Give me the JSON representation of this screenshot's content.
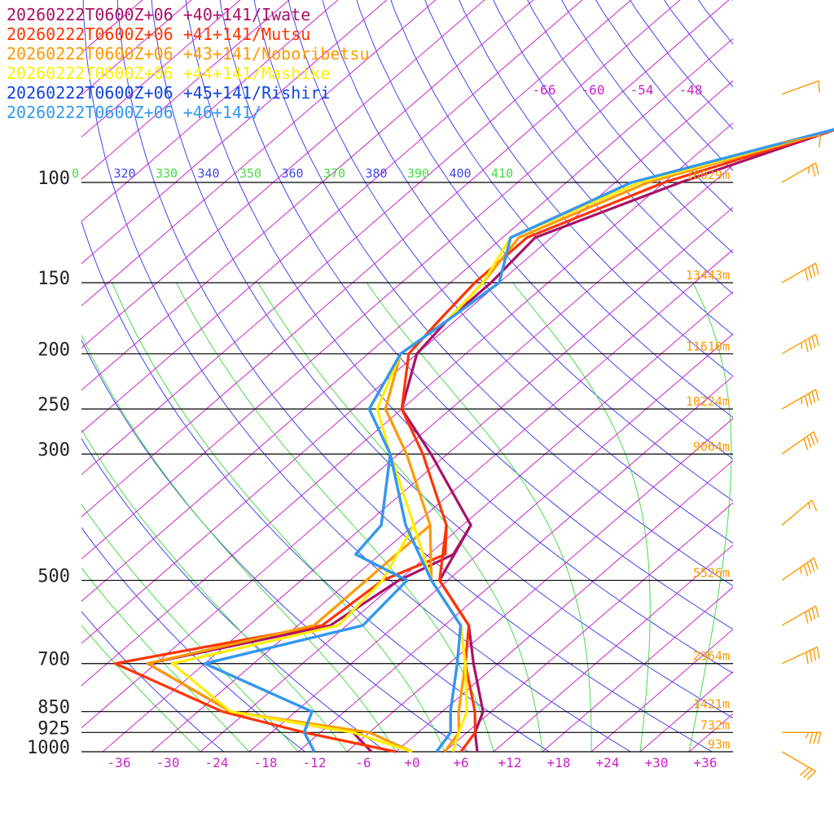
{
  "legend": [
    {
      "label": "20260222T0600Z+06 +40+141/Iwate",
      "color": "#aa1166"
    },
    {
      "label": "20260222T0600Z+06 +41+141/Mutsu",
      "color": "#ff3300"
    },
    {
      "label": "20260222T0600Z+06 +43+141/Noboribetsu",
      "color": "#ff9900"
    },
    {
      "label": "20260222T0600Z+06 +44+141/Mashike",
      "color": "#ffee00"
    },
    {
      "label": "20260222T0600Z+06 +45+141/Rishiri",
      "color": "#1144dd"
    },
    {
      "label": "20260222T0600Z+06 +46+141/",
      "color": "#3399ee"
    }
  ],
  "chart_data": {
    "type": "line",
    "title": "",
    "pressure_levels": [
      {
        "p": 100,
        "label": "100",
        "height": "16029m"
      },
      {
        "p": 150,
        "label": "150",
        "height": "13443m"
      },
      {
        "p": 200,
        "label": "200",
        "height": "11610m"
      },
      {
        "p": 250,
        "label": "250",
        "height": "10224m"
      },
      {
        "p": 300,
        "label": "300",
        "height": "9064m"
      },
      {
        "p": 500,
        "label": "500",
        "height": "5526m"
      },
      {
        "p": 700,
        "label": "700",
        "height": "2964m"
      },
      {
        "p": 850,
        "label": "850",
        "height": "1421m"
      },
      {
        "p": 925,
        "label": "925",
        "height": "732m"
      },
      {
        "p": 1000,
        "label": "1000",
        "height": "93m"
      }
    ],
    "x_ticks": [
      "-36",
      "-30",
      "-24",
      "-18",
      "-12",
      "-6",
      "+0",
      "+6",
      "+12",
      "+18",
      "+24",
      "+30",
      "+36"
    ],
    "x_tick_values": [
      -36,
      -30,
      -24,
      -18,
      -12,
      -6,
      0,
      6,
      12,
      18,
      24,
      30,
      36
    ],
    "top_isotherm_labels": [
      "-66",
      "-60",
      "-54",
      "-48"
    ],
    "theta_labels": [
      {
        "text": "0",
        "color": "#44dd44"
      },
      {
        "text": "320",
        "color": "#4444ee"
      },
      {
        "text": "330",
        "color": "#44dd44"
      },
      {
        "text": "340",
        "color": "#4444ee"
      },
      {
        "text": "350",
        "color": "#44dd44"
      },
      {
        "text": "360",
        "color": "#4444ee"
      },
      {
        "text": "370",
        "color": "#44dd44"
      },
      {
        "text": "380",
        "color": "#4444ee"
      },
      {
        "text": "390",
        "color": "#44dd44"
      },
      {
        "text": "400",
        "color": "#4444ee"
      },
      {
        "text": "410",
        "color": "#44dd44"
      }
    ],
    "xlim": [
      -40,
      40
    ],
    "ylim": [
      1000,
      100
    ],
    "series": [
      {
        "name": "Iwate",
        "color": "#aa1166",
        "temperature": [
          [
            80,
            -36
          ],
          [
            100,
            -48
          ],
          [
            125,
            -58
          ],
          [
            150,
            -57
          ],
          [
            175,
            -57
          ],
          [
            200,
            -56
          ],
          [
            250,
            -50
          ],
          [
            300,
            -40
          ],
          [
            400,
            -25
          ],
          [
            500,
            -21
          ],
          [
            600,
            -11
          ],
          [
            700,
            -5
          ],
          [
            850,
            3
          ],
          [
            925,
            5
          ],
          [
            1000,
            8
          ]
        ],
        "dewpoint": [
          [
            400,
            -25
          ],
          [
            450,
            -23
          ],
          [
            500,
            -26
          ],
          [
            600,
            -28
          ],
          [
            700,
            -45
          ],
          [
            850,
            -28
          ],
          [
            925,
            -10
          ],
          [
            1000,
            -5
          ]
        ]
      },
      {
        "name": "Mutsu",
        "color": "#ff3300",
        "temperature": [
          [
            80,
            -36
          ],
          [
            100,
            -50
          ],
          [
            125,
            -59
          ],
          [
            150,
            -59
          ],
          [
            175,
            -58
          ],
          [
            200,
            -57
          ],
          [
            250,
            -50
          ],
          [
            300,
            -41
          ],
          [
            400,
            -28
          ],
          [
            500,
            -21
          ],
          [
            600,
            -11
          ],
          [
            700,
            -6
          ],
          [
            850,
            2
          ],
          [
            925,
            5
          ],
          [
            1000,
            6
          ]
        ],
        "dewpoint": [
          [
            400,
            -28
          ],
          [
            450,
            -24
          ],
          [
            500,
            -28
          ],
          [
            600,
            -29
          ],
          [
            700,
            -49
          ],
          [
            850,
            -29
          ],
          [
            925,
            -16
          ],
          [
            1000,
            -2
          ]
        ]
      },
      {
        "name": "Noboribetsu",
        "color": "#ff9900",
        "temperature": [
          [
            80,
            -36
          ],
          [
            100,
            -52
          ],
          [
            125,
            -60
          ],
          [
            150,
            -58
          ],
          [
            175,
            -57
          ],
          [
            200,
            -58
          ],
          [
            250,
            -52
          ],
          [
            300,
            -43
          ],
          [
            400,
            -30
          ],
          [
            500,
            -22
          ],
          [
            600,
            -12
          ],
          [
            700,
            -6
          ],
          [
            850,
            0
          ],
          [
            925,
            3
          ],
          [
            1000,
            4
          ]
        ],
        "dewpoint": [
          [
            400,
            -30
          ],
          [
            500,
            -30
          ],
          [
            600,
            -30
          ],
          [
            700,
            -45
          ],
          [
            850,
            -28
          ],
          [
            925,
            -8
          ],
          [
            1000,
            0
          ]
        ]
      },
      {
        "name": "Mashike",
        "color": "#ffee00",
        "temperature": [
          [
            80,
            -36
          ],
          [
            100,
            -53
          ],
          [
            125,
            -61
          ],
          [
            150,
            -58
          ],
          [
            175,
            -57
          ],
          [
            200,
            -58
          ],
          [
            250,
            -53
          ],
          [
            300,
            -45
          ],
          [
            400,
            -32
          ],
          [
            500,
            -22
          ],
          [
            600,
            -12
          ],
          [
            700,
            -6
          ],
          [
            850,
            1
          ],
          [
            925,
            3
          ],
          [
            1000,
            5
          ]
        ],
        "dewpoint": [
          [
            400,
            -32
          ],
          [
            500,
            -28
          ],
          [
            600,
            -27
          ],
          [
            700,
            -42
          ],
          [
            850,
            -28
          ],
          [
            925,
            -10
          ],
          [
            1000,
            0
          ]
        ]
      },
      {
        "name": "Rishiri",
        "color": "#1144dd",
        "temperature": [
          [
            80,
            -36
          ],
          [
            100,
            -54
          ],
          [
            125,
            -61
          ],
          [
            150,
            -56
          ],
          [
            175,
            -57
          ],
          [
            200,
            -58
          ],
          [
            250,
            -54
          ],
          [
            300,
            -45
          ],
          [
            400,
            -33
          ],
          [
            500,
            -22
          ],
          [
            600,
            -12
          ],
          [
            700,
            -7
          ],
          [
            850,
            -1
          ],
          [
            925,
            2
          ],
          [
            1000,
            3
          ]
        ],
        "dewpoint": [
          [
            300,
            -45
          ],
          [
            400,
            -36
          ],
          [
            450,
            -35
          ],
          [
            500,
            -25
          ],
          [
            600,
            -24
          ],
          [
            700,
            -38
          ],
          [
            850,
            -18
          ],
          [
            925,
            -16
          ],
          [
            1000,
            -12
          ]
        ]
      },
      {
        "name": "46+141",
        "color": "#3399ee",
        "temperature": [
          [
            80,
            -36
          ],
          [
            100,
            -54
          ],
          [
            125,
            -61
          ],
          [
            150,
            -56
          ],
          [
            175,
            -57
          ],
          [
            200,
            -58
          ],
          [
            250,
            -54
          ],
          [
            300,
            -45
          ],
          [
            400,
            -33
          ],
          [
            500,
            -22
          ],
          [
            600,
            -12
          ],
          [
            700,
            -7
          ],
          [
            850,
            -1
          ],
          [
            925,
            2
          ],
          [
            1000,
            3
          ]
        ],
        "dewpoint": [
          [
            300,
            -45
          ],
          [
            400,
            -36
          ],
          [
            450,
            -35
          ],
          [
            500,
            -25
          ],
          [
            600,
            -24
          ],
          [
            700,
            -38
          ],
          [
            850,
            -18
          ],
          [
            925,
            -16
          ],
          [
            1000,
            -12
          ]
        ]
      }
    ],
    "wind_barbs": [
      {
        "p": 70,
        "speed_kt": 10,
        "dir": 250
      },
      {
        "p": 85,
        "speed_kt": 10,
        "dir": 260
      },
      {
        "p": 100,
        "speed_kt": 25,
        "dir": 240
      },
      {
        "p": 150,
        "speed_kt": 40,
        "dir": 240
      },
      {
        "p": 200,
        "speed_kt": 45,
        "dir": 240
      },
      {
        "p": 250,
        "speed_kt": 45,
        "dir": 240
      },
      {
        "p": 300,
        "speed_kt": 40,
        "dir": 235
      },
      {
        "p": 400,
        "speed_kt": 15,
        "dir": 230
      },
      {
        "p": 500,
        "speed_kt": 45,
        "dir": 235
      },
      {
        "p": 600,
        "speed_kt": 40,
        "dir": 240
      },
      {
        "p": 700,
        "speed_kt": 40,
        "dir": 245
      },
      {
        "p": 925,
        "speed_kt": 35,
        "dir": 270
      },
      {
        "p": 1000,
        "speed_kt": 30,
        "dir": 300
      }
    ],
    "colors": {
      "isotherm": "#cc22cc",
      "dry_adiabat": "#4444ee",
      "moist_adiabat": "#44dd44",
      "isobar": "#000000",
      "height_label": "#ff9900",
      "wind_barb": "#ff9900"
    }
  }
}
